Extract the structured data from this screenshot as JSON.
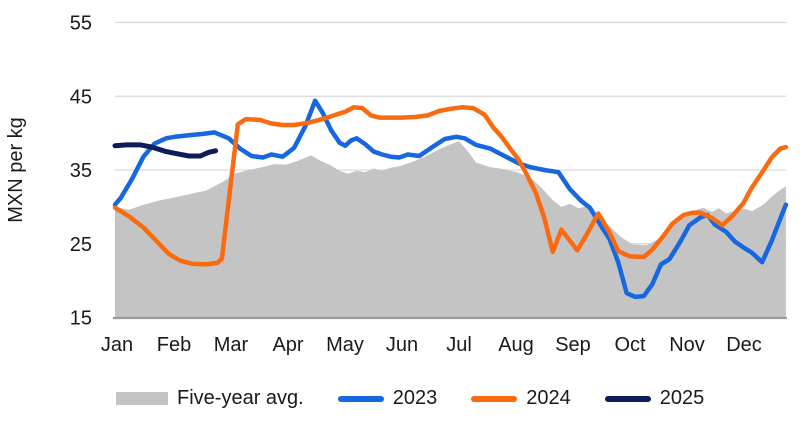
{
  "chart_data": {
    "type": "line",
    "title": "",
    "ylabel": "MXN per kg",
    "xlabel": "",
    "ylim": [
      15,
      55
    ],
    "yticks": [
      15,
      25,
      35,
      45,
      55
    ],
    "x_categories": [
      "Jan",
      "Feb",
      "Mar",
      "Apr",
      "May",
      "Jun",
      "Jul",
      "Aug",
      "Sep",
      "Oct",
      "Nov",
      "Dec"
    ],
    "grid": "horizontal",
    "legend_position": "bottom",
    "x_unit": "months (Jan=0), fractional = weekly points",
    "series": [
      {
        "name": "Five-year avg.",
        "style": "area",
        "color": "#c4c4c4",
        "points": [
          [
            0,
            30.0
          ],
          [
            0.25,
            29.6
          ],
          [
            0.5,
            30.3
          ],
          [
            0.8,
            30.9
          ],
          [
            1.0,
            31.2
          ],
          [
            1.3,
            31.7
          ],
          [
            1.6,
            32.2
          ],
          [
            1.9,
            33.4
          ],
          [
            2.1,
            34.5
          ],
          [
            2.35,
            35.0
          ],
          [
            2.6,
            35.4
          ],
          [
            2.8,
            35.8
          ],
          [
            3.0,
            35.7
          ],
          [
            3.2,
            36.2
          ],
          [
            3.45,
            37.0
          ],
          [
            3.6,
            36.3
          ],
          [
            3.8,
            35.6
          ],
          [
            3.95,
            34.9
          ],
          [
            4.1,
            34.5
          ],
          [
            4.25,
            34.9
          ],
          [
            4.4,
            34.7
          ],
          [
            4.55,
            35.2
          ],
          [
            4.7,
            34.9
          ],
          [
            4.85,
            35.3
          ],
          [
            5.0,
            35.5
          ],
          [
            5.2,
            36.0
          ],
          [
            5.45,
            36.8
          ],
          [
            5.7,
            37.8
          ],
          [
            5.9,
            38.5
          ],
          [
            6.05,
            38.9
          ],
          [
            6.2,
            37.6
          ],
          [
            6.35,
            36.0
          ],
          [
            6.6,
            35.4
          ],
          [
            6.85,
            35.1
          ],
          [
            7.07,
            34.7
          ],
          [
            7.3,
            34.0
          ],
          [
            7.5,
            32.6
          ],
          [
            7.7,
            30.9
          ],
          [
            7.85,
            30.0
          ],
          [
            8.0,
            30.4
          ],
          [
            8.15,
            29.8
          ],
          [
            8.3,
            30.1
          ],
          [
            8.5,
            28.7
          ],
          [
            8.7,
            27.4
          ],
          [
            8.9,
            25.9
          ],
          [
            9.1,
            24.9
          ],
          [
            9.35,
            24.8
          ],
          [
            9.55,
            25.6
          ],
          [
            9.75,
            27.0
          ],
          [
            9.95,
            28.4
          ],
          [
            10.15,
            29.4
          ],
          [
            10.35,
            29.9
          ],
          [
            10.5,
            29.3
          ],
          [
            10.62,
            29.8
          ],
          [
            10.75,
            29.1
          ],
          [
            10.9,
            29.5
          ],
          [
            11.05,
            29.8
          ],
          [
            11.2,
            29.4
          ],
          [
            11.4,
            30.3
          ],
          [
            11.55,
            31.4
          ],
          [
            11.7,
            32.3
          ],
          [
            11.8,
            32.8
          ]
        ]
      },
      {
        "name": "2023",
        "style": "line",
        "color": "#1667e0",
        "points": [
          [
            0,
            30.3
          ],
          [
            0.1,
            31.2
          ],
          [
            0.3,
            33.8
          ],
          [
            0.5,
            36.8
          ],
          [
            0.7,
            38.6
          ],
          [
            0.9,
            39.3
          ],
          [
            1.05,
            39.5
          ],
          [
            1.3,
            39.7
          ],
          [
            1.55,
            39.9
          ],
          [
            1.75,
            40.1
          ],
          [
            2.0,
            39.3
          ],
          [
            2.2,
            37.9
          ],
          [
            2.4,
            36.9
          ],
          [
            2.6,
            36.7
          ],
          [
            2.75,
            37.1
          ],
          [
            2.95,
            36.8
          ],
          [
            3.15,
            38.0
          ],
          [
            3.35,
            41.0
          ],
          [
            3.52,
            44.4
          ],
          [
            3.65,
            42.8
          ],
          [
            3.8,
            40.4
          ],
          [
            3.95,
            38.7
          ],
          [
            4.05,
            38.3
          ],
          [
            4.15,
            39.0
          ],
          [
            4.25,
            39.3
          ],
          [
            4.4,
            38.5
          ],
          [
            4.55,
            37.5
          ],
          [
            4.7,
            37.1
          ],
          [
            4.85,
            36.8
          ],
          [
            5.0,
            36.7
          ],
          [
            5.15,
            37.1
          ],
          [
            5.35,
            36.9
          ],
          [
            5.6,
            38.2
          ],
          [
            5.8,
            39.2
          ],
          [
            6.0,
            39.5
          ],
          [
            6.15,
            39.3
          ],
          [
            6.35,
            38.4
          ],
          [
            6.6,
            37.9
          ],
          [
            6.85,
            36.9
          ],
          [
            7.1,
            35.9
          ],
          [
            7.3,
            35.4
          ],
          [
            7.55,
            35.0
          ],
          [
            7.8,
            34.7
          ],
          [
            8.0,
            32.4
          ],
          [
            8.2,
            30.8
          ],
          [
            8.35,
            29.9
          ],
          [
            8.55,
            27.4
          ],
          [
            8.7,
            25.6
          ],
          [
            8.85,
            22.5
          ],
          [
            9.0,
            18.3
          ],
          [
            9.15,
            17.8
          ],
          [
            9.3,
            17.9
          ],
          [
            9.45,
            19.5
          ],
          [
            9.6,
            22.2
          ],
          [
            9.75,
            22.9
          ],
          [
            9.95,
            25.4
          ],
          [
            10.1,
            27.5
          ],
          [
            10.3,
            28.6
          ],
          [
            10.42,
            28.9
          ],
          [
            10.55,
            27.6
          ],
          [
            10.75,
            26.6
          ],
          [
            10.9,
            25.3
          ],
          [
            11.05,
            24.5
          ],
          [
            11.2,
            23.8
          ],
          [
            11.38,
            22.5
          ],
          [
            11.55,
            25.4
          ],
          [
            11.7,
            28.4
          ],
          [
            11.8,
            30.3
          ]
        ]
      },
      {
        "name": "2024",
        "style": "line",
        "color": "#f96b0e",
        "points": [
          [
            0,
            29.9
          ],
          [
            0.25,
            28.7
          ],
          [
            0.5,
            27.2
          ],
          [
            0.7,
            25.6
          ],
          [
            0.95,
            23.6
          ],
          [
            1.15,
            22.7
          ],
          [
            1.35,
            22.3
          ],
          [
            1.6,
            22.2
          ],
          [
            1.8,
            22.4
          ],
          [
            1.88,
            23.0
          ],
          [
            2.16,
            41.2
          ],
          [
            2.3,
            41.9
          ],
          [
            2.55,
            41.8
          ],
          [
            2.75,
            41.3
          ],
          [
            2.95,
            41.1
          ],
          [
            3.15,
            41.1
          ],
          [
            3.4,
            41.4
          ],
          [
            3.65,
            41.9
          ],
          [
            3.85,
            42.4
          ],
          [
            4.05,
            42.9
          ],
          [
            4.2,
            43.5
          ],
          [
            4.35,
            43.4
          ],
          [
            4.5,
            42.4
          ],
          [
            4.65,
            42.1
          ],
          [
            4.85,
            42.1
          ],
          [
            5.05,
            42.1
          ],
          [
            5.3,
            42.2
          ],
          [
            5.5,
            42.4
          ],
          [
            5.7,
            43.0
          ],
          [
            5.9,
            43.3
          ],
          [
            6.1,
            43.5
          ],
          [
            6.3,
            43.4
          ],
          [
            6.5,
            42.5
          ],
          [
            6.65,
            40.8
          ],
          [
            6.8,
            39.5
          ],
          [
            6.95,
            37.9
          ],
          [
            7.1,
            36.4
          ],
          [
            7.25,
            34.3
          ],
          [
            7.4,
            31.9
          ],
          [
            7.55,
            28.5
          ],
          [
            7.7,
            23.9
          ],
          [
            7.85,
            26.9
          ],
          [
            8.0,
            25.4
          ],
          [
            8.13,
            24.1
          ],
          [
            8.3,
            26.3
          ],
          [
            8.5,
            29.1
          ],
          [
            8.7,
            26.5
          ],
          [
            8.85,
            24.0
          ],
          [
            9.05,
            23.3
          ],
          [
            9.3,
            23.2
          ],
          [
            9.45,
            24.2
          ],
          [
            9.65,
            26.1
          ],
          [
            9.8,
            27.7
          ],
          [
            10.0,
            28.9
          ],
          [
            10.15,
            29.2
          ],
          [
            10.3,
            29.2
          ],
          [
            10.5,
            28.5
          ],
          [
            10.68,
            27.5
          ],
          [
            10.85,
            28.7
          ],
          [
            11.05,
            30.5
          ],
          [
            11.2,
            32.6
          ],
          [
            11.4,
            34.9
          ],
          [
            11.55,
            36.7
          ],
          [
            11.7,
            37.9
          ],
          [
            11.8,
            38.1
          ]
        ]
      },
      {
        "name": "2025",
        "style": "line",
        "color": "#0d1c5b",
        "points": [
          [
            0,
            38.3
          ],
          [
            0.2,
            38.4
          ],
          [
            0.45,
            38.4
          ],
          [
            0.65,
            38.1
          ],
          [
            0.9,
            37.5
          ],
          [
            1.1,
            37.2
          ],
          [
            1.3,
            36.9
          ],
          [
            1.5,
            36.9
          ],
          [
            1.65,
            37.4
          ],
          [
            1.77,
            37.6
          ]
        ]
      }
    ]
  },
  "legend": {
    "items": [
      {
        "label": "Five-year avg.",
        "type": "area",
        "color": "#c4c4c4"
      },
      {
        "label": "2023",
        "type": "line",
        "color": "#1667e0"
      },
      {
        "label": "2024",
        "type": "line",
        "color": "#f96b0e"
      },
      {
        "label": "2025",
        "type": "line",
        "color": "#0d1c5b"
      }
    ]
  },
  "colors": {
    "gridline": "#d9d9d9",
    "axis_line": "#9b9b9b",
    "text": "#1a1a1a"
  }
}
